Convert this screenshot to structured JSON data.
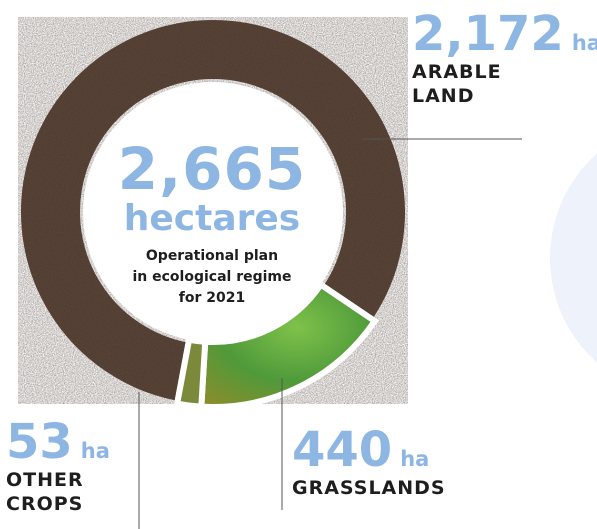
{
  "chart_data": {
    "type": "pie",
    "center": {
      "total": "2,665",
      "unit": "hectares",
      "caption": [
        "Operational plan",
        "in ecological regime",
        "for 2021"
      ]
    },
    "slices": [
      {
        "label": "ARABLE LAND",
        "value": 2172,
        "display_value": "2,172",
        "unit": "ha",
        "label_lines": [
          "ARABLE",
          "LAND"
        ],
        "color": "#5a4538"
      },
      {
        "label": "GRASSLANDS",
        "value": 440,
        "display_value": "440",
        "unit": "ha",
        "label_lines": [
          "GRASSLANDS"
        ],
        "color": "#4f9a3a"
      },
      {
        "label": "OTHER CROPS",
        "value": 53,
        "display_value": "53",
        "unit": "ha",
        "label_lines": [
          "OTHER",
          "CROPS"
        ],
        "color": "#7a8a3a"
      }
    ]
  },
  "colors": {
    "accent": "#8eb6e3",
    "text": "#1e1e1e",
    "soil": "#5a4538",
    "grass": "#4f9a3a",
    "other_crops": "#7a8a3a",
    "background_circle": "#eef3fb"
  }
}
